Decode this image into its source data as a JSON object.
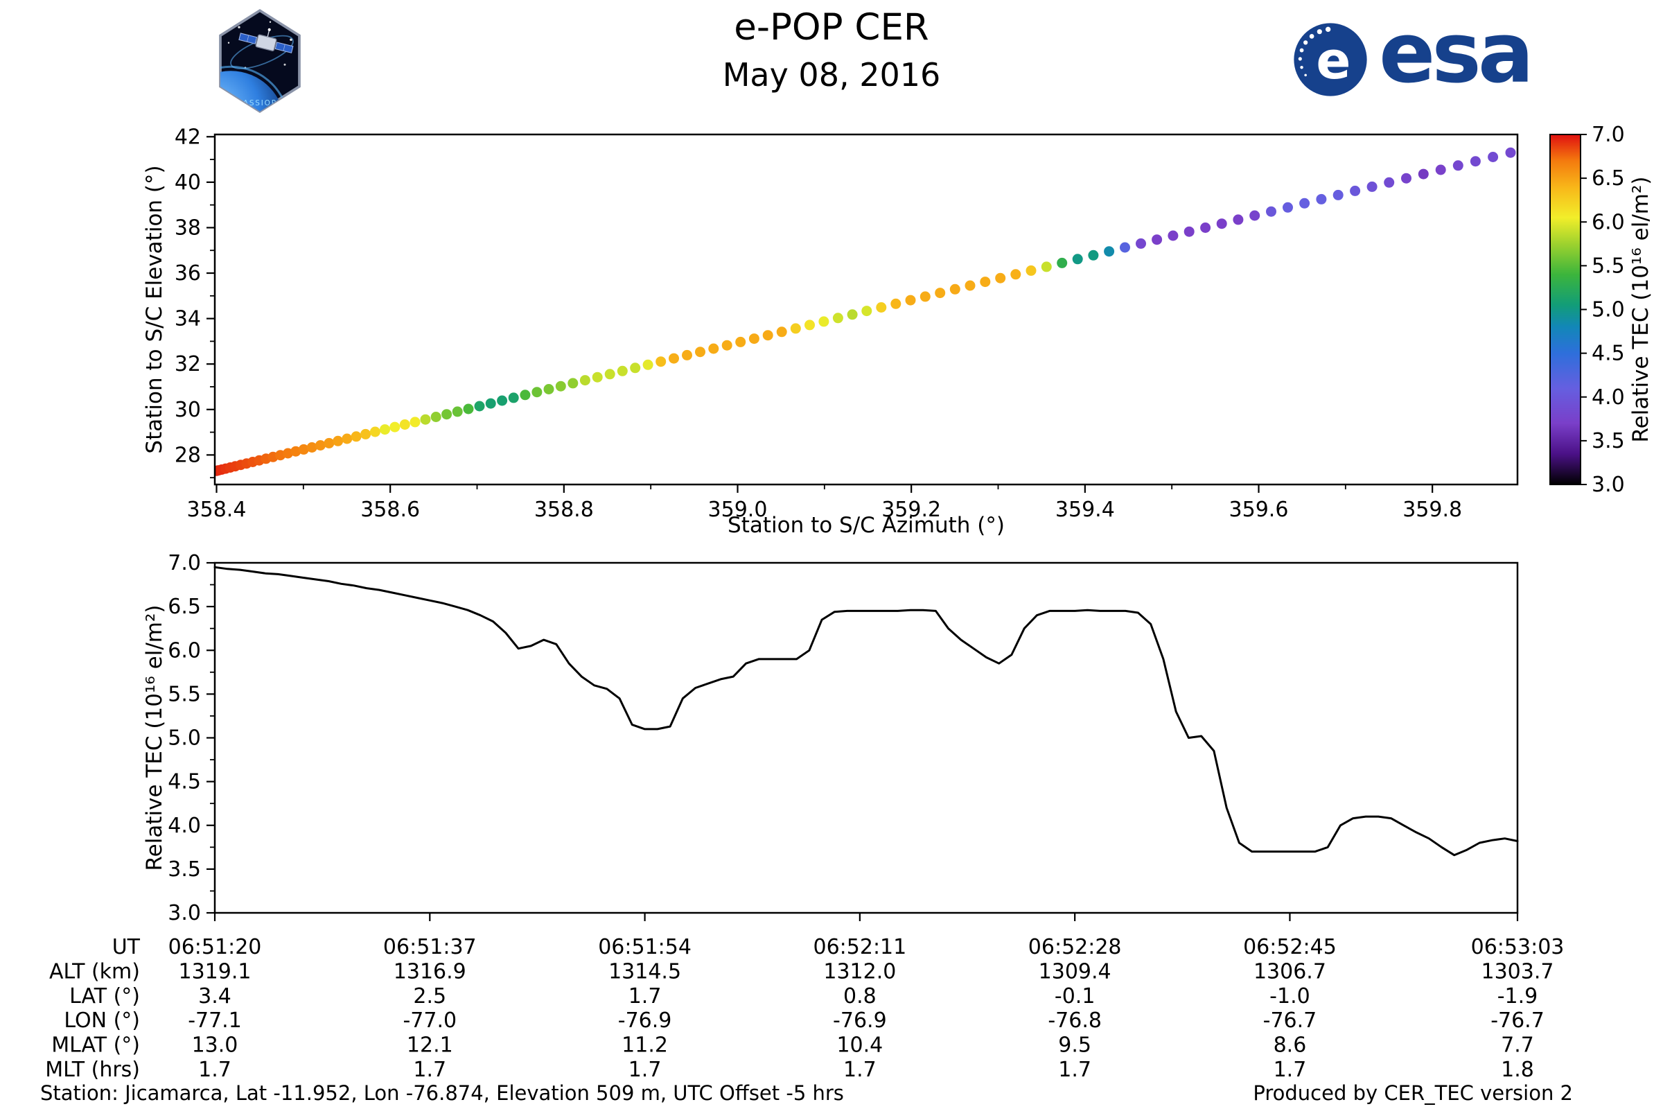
{
  "header": {
    "title": "e-POP CER",
    "date": "May 08, 2016",
    "cassiope_label": "CASSIOPE",
    "esa_letter": "e",
    "esa_wordmark": "esa"
  },
  "footer": {
    "station_info": "Station: Jicamarca, Lat -11.952, Lon -76.874, Elevation 509 m, UTC Offset -5 hrs",
    "produced_by": "Produced by CER_TEC version 2"
  },
  "colors": {
    "esa_blue": "#16418c",
    "line_color": "#000000",
    "frame_color": "#000000",
    "colormap_stops": [
      [
        3.0,
        "#000000"
      ],
      [
        3.35,
        "#4b1187"
      ],
      [
        3.7,
        "#7a3fc9"
      ],
      [
        4.1,
        "#655fe0"
      ],
      [
        4.5,
        "#2e6fdb"
      ],
      [
        4.8,
        "#1287b8"
      ],
      [
        5.05,
        "#129d78"
      ],
      [
        5.4,
        "#3cb53c"
      ],
      [
        5.75,
        "#9ed22e"
      ],
      [
        6.05,
        "#f2ee2a"
      ],
      [
        6.4,
        "#f8b619"
      ],
      [
        6.7,
        "#f47a0e"
      ],
      [
        7.0,
        "#e01010"
      ]
    ]
  },
  "chart_data": [
    {
      "type": "scatter",
      "xlabel": "Station to S/C Azimuth (°)",
      "ylabel": "Station to S/C Elevation (°)",
      "xlim": [
        358.398,
        359.898
      ],
      "ylim": [
        26.7,
        42.1
      ],
      "xticks": [
        358.4,
        358.6,
        358.8,
        359.0,
        359.2,
        359.4,
        359.6,
        359.8
      ],
      "yticks": [
        28,
        30,
        32,
        34,
        36,
        38,
        40,
        42
      ],
      "grid": false,
      "track": {
        "azimuth_start": 358.4,
        "azimuth_end": 359.89,
        "elevation_start": 27.3,
        "elevation_end": 41.3,
        "progress_exponent": 1.4,
        "color_source": "tec_series_chart_2"
      },
      "colorbar": {
        "label": "Relative TEC (10¹⁶ el/m²)",
        "range": [
          3.0,
          7.0
        ],
        "ticks": [
          3.0,
          3.5,
          4.0,
          4.5,
          5.0,
          5.5,
          6.0,
          6.5,
          7.0
        ],
        "position": "right"
      }
    },
    {
      "type": "line",
      "ylabel": "Relative TEC (10¹⁶ el/m²)",
      "ylim": [
        3.0,
        7.0
      ],
      "yticks": [
        3.0,
        3.5,
        4.0,
        4.5,
        5.0,
        5.5,
        6.0,
        6.5,
        7.0
      ],
      "x_range_seconds": [
        0,
        103
      ],
      "xtick_seconds": [
        0,
        17,
        34,
        51,
        68,
        85,
        103
      ],
      "x_start_ut": "06:51:20",
      "x_end_ut": "06:53:03",
      "grid": false,
      "legend": false,
      "series": [
        {
          "name": "Relative TEC",
          "dt_seconds": 1,
          "values": [
            6.95,
            6.93,
            6.92,
            6.9,
            6.88,
            6.87,
            6.85,
            6.83,
            6.81,
            6.79,
            6.76,
            6.74,
            6.71,
            6.69,
            6.66,
            6.63,
            6.6,
            6.57,
            6.54,
            6.5,
            6.46,
            6.4,
            6.33,
            6.2,
            6.02,
            6.05,
            6.12,
            6.07,
            5.85,
            5.7,
            5.6,
            5.56,
            5.45,
            5.15,
            5.1,
            5.1,
            5.13,
            5.45,
            5.57,
            5.62,
            5.67,
            5.7,
            5.85,
            5.9,
            5.9,
            5.9,
            5.9,
            6.0,
            6.35,
            6.44,
            6.45,
            6.45,
            6.45,
            6.45,
            6.45,
            6.46,
            6.46,
            6.45,
            6.25,
            6.12,
            6.02,
            5.92,
            5.85,
            5.95,
            6.25,
            6.4,
            6.45,
            6.45,
            6.45,
            6.46,
            6.45,
            6.45,
            6.45,
            6.43,
            6.3,
            5.9,
            5.3,
            5.0,
            5.02,
            4.85,
            4.2,
            3.8,
            3.7,
            3.7,
            3.7,
            3.7,
            3.7,
            3.7,
            3.75,
            4.0,
            4.08,
            4.1,
            4.1,
            4.08,
            4.0,
            3.92,
            3.85,
            3.75,
            3.66,
            3.72,
            3.8,
            3.83,
            3.85,
            3.82
          ]
        }
      ]
    }
  ],
  "table": {
    "row_labels": [
      "UT",
      "ALT (km)",
      "LAT (°)",
      "LON (°)",
      "MLAT (°)",
      "MLT (hrs)"
    ],
    "column_times_s": [
      0,
      17,
      34,
      51,
      68,
      85,
      103
    ],
    "rows": [
      [
        "06:51:20",
        "06:51:37",
        "06:51:54",
        "06:52:11",
        "06:52:28",
        "06:52:45",
        "06:53:03"
      ],
      [
        "1319.1",
        "1316.9",
        "1314.5",
        "1312.0",
        "1309.4",
        "1306.7",
        "1303.7"
      ],
      [
        "3.4",
        "2.5",
        "1.7",
        "0.8",
        "-0.1",
        "-1.0",
        "-1.9"
      ],
      [
        "-77.1",
        "-77.0",
        "-76.9",
        "-76.9",
        "-76.8",
        "-76.7",
        "-76.7"
      ],
      [
        "13.0",
        "12.1",
        "11.2",
        "10.4",
        "9.5",
        "8.6",
        "7.7"
      ],
      [
        "1.7",
        "1.7",
        "1.7",
        "1.7",
        "1.7",
        "1.7",
        "1.8"
      ]
    ]
  }
}
